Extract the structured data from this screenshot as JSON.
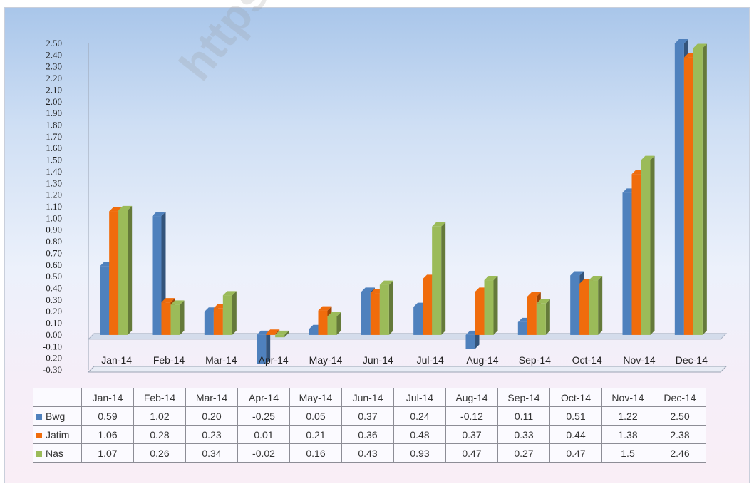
{
  "watermark": "https://jatim",
  "chart_data": {
    "type": "bar",
    "categories": [
      "Jan-14",
      "Feb-14",
      "Mar-14",
      "Apr-14",
      "May-14",
      "Jun-14",
      "Jul-14",
      "Aug-14",
      "Sep-14",
      "Oct-14",
      "Nov-14",
      "Dec-14"
    ],
    "series": [
      {
        "name": "Bwg",
        "color": "#4f81bd",
        "values": [
          0.59,
          1.02,
          0.2,
          -0.25,
          0.05,
          0.37,
          0.24,
          -0.12,
          0.11,
          0.51,
          1.22,
          2.5
        ]
      },
      {
        "name": "Jatim",
        "color": "#f06c0c",
        "values": [
          1.06,
          0.28,
          0.23,
          0.01,
          0.21,
          0.36,
          0.48,
          0.37,
          0.33,
          0.44,
          1.38,
          2.38
        ]
      },
      {
        "name": "Nas",
        "color": "#9bbb59",
        "values": [
          1.07,
          0.26,
          0.34,
          -0.02,
          0.16,
          0.43,
          0.93,
          0.47,
          0.27,
          0.47,
          1.5,
          2.46
        ]
      }
    ],
    "table_values": {
      "Bwg": [
        "0.59",
        "1.02",
        "0.20",
        "-0.25",
        "0.05",
        "0.37",
        "0.24",
        "-0.12",
        "0.11",
        "0.51",
        "1.22",
        "2.50"
      ],
      "Jatim": [
        "1.06",
        "0.28",
        "0.23",
        "0.01",
        "0.21",
        "0.36",
        "0.48",
        "0.37",
        "0.33",
        "0.44",
        "1.38",
        "2.38"
      ],
      "Nas": [
        "1.07",
        "0.26",
        "0.34",
        "-0.02",
        "0.16",
        "0.43",
        "0.93",
        "0.47",
        "0.27",
        "0.47",
        "1.5",
        "2.46"
      ]
    },
    "y_ticks": [
      "2.50",
      "2.40",
      "2.30",
      "2.20",
      "2.10",
      "2.00",
      "1.90",
      "1.80",
      "1.70",
      "1.60",
      "1.50",
      "1.40",
      "1.30",
      "1.20",
      "1.10",
      "1.00",
      "0.90",
      "0.80",
      "0.70",
      "0.60",
      "0.50",
      "0.40",
      "0.30",
      "0.20",
      "0.10",
      "0.00",
      "-0.10",
      "-0.20",
      "-0.30"
    ],
    "ylim": [
      -0.3,
      2.5
    ],
    "grid": false,
    "legend": "data-table"
  }
}
